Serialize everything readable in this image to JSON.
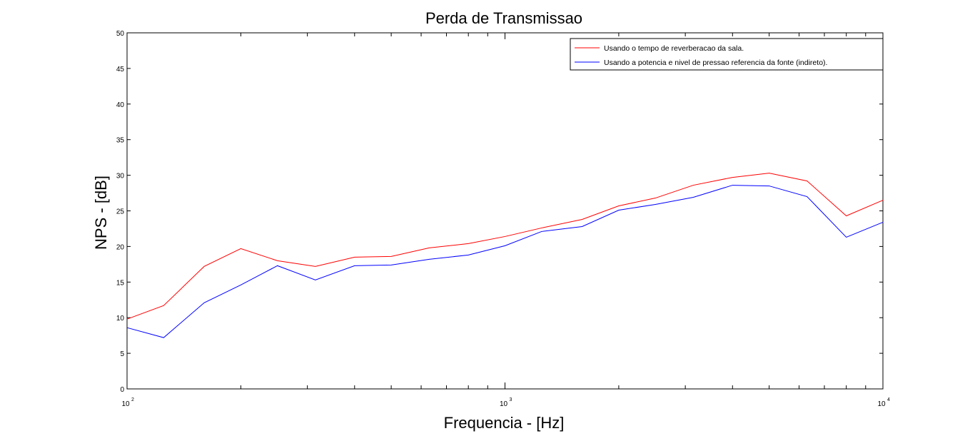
{
  "chart_data": {
    "type": "line",
    "title": "Perda de Transmissao",
    "xlabel": "Frequencia - [Hz]",
    "ylabel": "NPS - [dB]",
    "xscale": "log",
    "xlim": [
      100,
      10000
    ],
    "ylim": [
      0,
      50
    ],
    "yticks": [
      0,
      5,
      10,
      15,
      20,
      25,
      30,
      35,
      40,
      45,
      50
    ],
    "xticks": [
      {
        "value": 100,
        "base": "10",
        "exp": "2"
      },
      {
        "value": 1000,
        "base": "10",
        "exp": "3"
      },
      {
        "value": 10000,
        "base": "10",
        "exp": "4"
      }
    ],
    "grid": false,
    "legend_position": "top-right",
    "x": [
      100,
      125,
      160,
      200,
      250,
      315,
      400,
      500,
      630,
      800,
      1000,
      1250,
      1600,
      2000,
      2500,
      3150,
      4000,
      5000,
      6300,
      8000,
      10000
    ],
    "series": [
      {
        "name": "Usando o tempo de reverberacao da sala.",
        "color": "#ff0000",
        "values": [
          9.8,
          11.7,
          17.2,
          19.7,
          18.0,
          17.2,
          18.5,
          18.6,
          19.8,
          20.4,
          21.4,
          22.6,
          23.8,
          25.7,
          26.8,
          28.6,
          29.7,
          30.3,
          29.2,
          24.3,
          26.5
        ]
      },
      {
        "name": "Usando a potencia e nivel de pressao referencia da fonte (indireto).",
        "color": "#0000ff",
        "values": [
          8.6,
          7.2,
          12.1,
          14.6,
          17.3,
          15.3,
          17.3,
          17.4,
          18.2,
          18.8,
          20.1,
          22.1,
          22.8,
          25.1,
          25.9,
          26.9,
          28.6,
          28.5,
          27.0,
          21.3,
          23.4
        ]
      }
    ]
  }
}
